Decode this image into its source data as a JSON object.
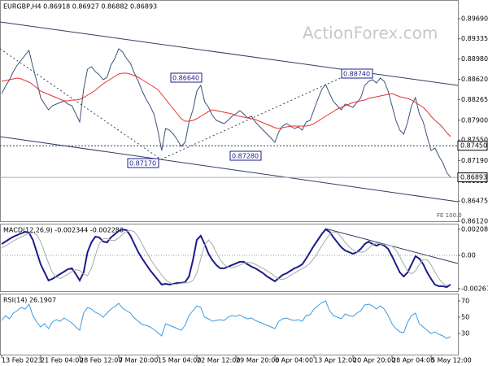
{
  "header": "EURGBP,H4 0.86918 0.86927 0.86882 0.86893",
  "watermark": "ActionForex.com",
  "chart_data": [
    {
      "type": "line",
      "note_label": "FE 100.0",
      "categories": [
        "13 Feb 2023",
        null,
        null,
        null,
        null,
        null,
        null,
        null,
        null,
        null,
        "21 Feb 04:00",
        null,
        null,
        null,
        null,
        null,
        null,
        null,
        null,
        null,
        "28 Feb 12:00",
        null,
        null,
        null,
        null,
        null,
        null,
        null,
        null,
        null,
        "7 Mar 20:00",
        null,
        null,
        null,
        null,
        null,
        null,
        null,
        null,
        null,
        "15 Mar 04:00",
        null,
        null,
        null,
        null,
        null,
        null,
        null,
        null,
        null,
        "22 Mar 12:00",
        null,
        null,
        null,
        null,
        null,
        null,
        null,
        null,
        null,
        "29 Mar 20:00",
        null,
        null,
        null,
        null,
        null,
        null,
        null,
        null,
        null,
        "6 Apr 04:00",
        null,
        null,
        null,
        null,
        null,
        null,
        null,
        null,
        null,
        "13 Apr 12:00",
        null,
        null,
        null,
        null,
        null,
        null,
        null,
        null,
        null,
        "20 Apr 20:00",
        null,
        null,
        null,
        null,
        null,
        null,
        null,
        null,
        null,
        "28 Apr 04:00",
        null,
        null,
        null,
        null,
        null,
        null,
        null,
        null,
        null,
        "5 May 12:00",
        null,
        null,
        null,
        null,
        null
      ],
      "series": [
        {
          "color": "#3d5277",
          "values": [
            0.88371,
            0.885,
            0.88615,
            0.88758,
            0.88873,
            0.88959,
            0.89045,
            0.89131,
            0.88844,
            0.88586,
            0.88299,
            0.88185,
            0.88084,
            0.88156,
            0.88185,
            0.88213,
            0.88242,
            0.88185,
            0.88156,
            0.88013,
            0.87869,
            0.88443,
            0.88801,
            0.88844,
            0.88758,
            0.88701,
            0.88615,
            0.88658,
            0.88873,
            0.88988,
            0.8916,
            0.89102,
            0.88988,
            0.88902,
            0.88729,
            0.88586,
            0.88414,
            0.88271,
            0.88156,
            0.88013,
            0.87726,
            0.87367,
            0.87754,
            0.87726,
            0.87654,
            0.87554,
            0.87439,
            0.87511,
            0.87869,
            0.88084,
            0.88414,
            0.88514,
            0.88228,
            0.88127,
            0.87984,
            0.87898,
            0.87869,
            0.87841,
            0.87898,
            0.8797,
            0.88013,
            0.8807,
            0.88013,
            0.87941,
            0.8797,
            0.87869,
            0.87798,
            0.87726,
            0.87654,
            0.87583,
            0.87511,
            0.87697,
            0.87798,
            0.87841,
            0.87798,
            0.87754,
            0.87783,
            0.87726,
            0.87869,
            0.87898,
            0.88084,
            0.88271,
            0.88443,
            0.88529,
            0.88371,
            0.88228,
            0.88156,
            0.88084,
            0.88185,
            0.88156,
            0.88127,
            0.88213,
            0.88299,
            0.88514,
            0.88586,
            0.88615,
            0.88557,
            0.88643,
            0.88586,
            0.88414,
            0.88156,
            0.87898,
            0.87726,
            0.87654,
            0.87869,
            0.88156,
            0.88299,
            0.88013,
            0.87869,
            0.87611,
            0.87367,
            0.8741,
            0.87267,
            0.87152,
            0.8698,
            0.86893
          ]
        },
        {
          "color": "#e8312f",
          "values": [
            0.88586,
            0.886,
            0.88615,
            0.88629,
            0.88643,
            0.88629,
            0.886,
            0.88572,
            0.88529,
            0.88471,
            0.88414,
            0.88385,
            0.88357,
            0.88328,
            0.88299,
            0.88271,
            0.88242,
            0.88242,
            0.88256,
            0.88256,
            0.88271,
            0.88299,
            0.88342,
            0.88385,
            0.88428,
            0.88486,
            0.88543,
            0.88586,
            0.88629,
            0.88672,
            0.88715,
            0.88729,
            0.88729,
            0.88715,
            0.88686,
            0.88658,
            0.88615,
            0.88572,
            0.88529,
            0.88486,
            0.88443,
            0.88357,
            0.88271,
            0.88185,
            0.88099,
            0.88013,
            0.87927,
            0.87884,
            0.87884,
            0.87898,
            0.87927,
            0.8797,
            0.88013,
            0.88056,
            0.88084,
            0.8807,
            0.88056,
            0.88041,
            0.88027,
            0.88013,
            0.87984,
            0.8797,
            0.87955,
            0.87941,
            0.87927,
            0.87912,
            0.87884,
            0.87855,
            0.87826,
            0.87798,
            0.87769,
            0.87754,
            0.87769,
            0.87783,
            0.87798,
            0.87798,
            0.87798,
            0.87798,
            0.87798,
            0.87812,
            0.87841,
            0.87884,
            0.87927,
            0.8797,
            0.88013,
            0.88056,
            0.88099,
            0.88127,
            0.88156,
            0.88185,
            0.88213,
            0.88228,
            0.88242,
            0.88256,
            0.88285,
            0.88299,
            0.88314,
            0.88328,
            0.88342,
            0.88357,
            0.88371,
            0.88342,
            0.88314,
            0.88299,
            0.88285,
            0.88256,
            0.88213,
            0.8817,
            0.88127,
            0.88056,
            0.8797,
            0.87898,
            0.87841,
            0.87769,
            0.87683,
            0.87611
          ]
        }
      ],
      "levels": [
        {
          "value": 0.8745,
          "label": "0.87450"
        },
        {
          "value": 0.86893,
          "label": "0.86893"
        }
      ],
      "annotations": [
        "0.87170",
        "0.86640",
        "0.87280",
        "0.88740"
      ],
      "ylim": [
        0.8612,
        0.89962
      ],
      "yticks": [
        {
          "value": 0.8969,
          "label": "0.89690"
        },
        0.89335,
        {
          "value": 0.8898,
          "label": "0.88980"
        },
        {
          "value": 0.8862,
          "label": "0.88620"
        },
        0.88265,
        {
          "value": 0.879,
          "label": "0.87900"
        },
        {
          "value": 0.8755,
          "label": "0.87550"
        },
        {
          "value": 0.8719,
          "label": "0.87190"
        },
        {
          "value": 0.8683,
          "label": "0.86830"
        },
        0.86475,
        {
          "value": 0.8612,
          "label": "0.86120"
        }
      ]
    },
    {
      "type": "line",
      "label": "MACD(12,26,9) -0.002344 -0.002286",
      "series": [
        {
          "color": "#1c1c8a",
          "values": [
            0.00091,
            0.00111,
            0.00131,
            0.0015,
            0.00163,
            0.00176,
            0.00189,
            0.00183,
            0.00124,
            0.00026,
            -0.00072,
            -0.00137,
            -0.00202,
            -0.00189,
            -0.0017,
            -0.0015,
            -0.00131,
            -0.00111,
            -0.00104,
            -0.0015,
            -0.00202,
            -0.00137,
            0.00026,
            0.00104,
            0.0015,
            0.00144,
            0.00111,
            0.00104,
            0.00144,
            0.0017,
            0.00196,
            0.00209,
            0.00202,
            0.00157,
            0.00091,
            0.00026,
            -0.00026,
            -0.00072,
            -0.00118,
            -0.00157,
            -0.00196,
            -0.00235,
            -0.00229,
            -0.00235,
            -0.00229,
            -0.00222,
            -0.00222,
            -0.00215,
            -0.0017,
            -0.00039,
            0.00124,
            0.00157,
            0.00091,
            0.00013,
            -0.00039,
            -0.00078,
            -0.00104,
            -0.00104,
            -0.00091,
            -0.00078,
            -0.00065,
            -0.00052,
            -0.00052,
            -0.00072,
            -0.00091,
            -0.00104,
            -0.00124,
            -0.00144,
            -0.0017,
            -0.00189,
            -0.00209,
            -0.00183,
            -0.00157,
            -0.00144,
            -0.00124,
            -0.00104,
            -0.00091,
            -0.00072,
            -0.00026,
            0.00026,
            0.00078,
            0.00124,
            0.0017,
            0.00209,
            0.00189,
            0.00144,
            0.00104,
            0.00065,
            0.00039,
            0.00026,
            0.00013,
            0.00026,
            0.00052,
            0.00091,
            0.00111,
            0.00091,
            0.00078,
            0.00091,
            0.00078,
            0.00052,
            -7e-05,
            -0.00072,
            -0.00137,
            -0.0017,
            -0.00137,
            -0.00072,
            -7e-05,
            -0.00026,
            -0.00072,
            -0.00137,
            -0.00189,
            -0.00235,
            -0.00248,
            -0.00248,
            -0.00255,
            -0.002344
          ]
        },
        {
          "color": "#a9a9a9",
          "values": [
            0.0006,
            0.00075,
            0.00095,
            0.00115,
            0.00132,
            0.00148,
            0.00163,
            0.00176,
            0.00183,
            0.00165,
            0.00111,
            0.00026,
            -0.00061,
            -0.00137,
            -0.00176,
            -0.00187,
            -0.0017,
            -0.0015,
            -0.00131,
            -0.00115,
            -0.00122,
            -0.00152,
            -0.00163,
            -0.00104,
            -2e-05,
            0.00093,
            0.00133,
            0.00135,
            0.0012,
            0.0012,
            0.00139,
            0.0017,
            0.00192,
            0.00202,
            0.00189,
            0.0015,
            0.00091,
            0.0003,
            -0.00024,
            -0.00072,
            -0.00116,
            -0.00157,
            -0.00196,
            -0.0022,
            -0.00233,
            -0.00231,
            -0.00225,
            -0.00221,
            -0.0022,
            -0.00202,
            -0.00141,
            -0.00028,
            0.00081,
            0.00124,
            0.00087,
            0.00022,
            -0.00035,
            -0.00074,
            -0.00095,
            -0.001,
            -0.00091,
            -0.00078,
            -0.00065,
            -0.00056,
            -0.0006,
            -0.00072,
            -0.00089,
            -0.00106,
            -0.00124,
            -0.00146,
            -0.00168,
            -0.00189,
            -0.00194,
            -0.00183,
            -0.00161,
            -0.00142,
            -0.00124,
            -0.00106,
            -0.00089,
            -0.00063,
            -0.00024,
            0.00026,
            0.00076,
            0.00124,
            0.00168,
            0.00189,
            0.00181,
            0.00146,
            0.00104,
            0.00069,
            0.00043,
            0.00026,
            0.00026,
            0.0003,
            0.00056,
            0.00085,
            0.00098,
            0.00093,
            0.00087,
            0.00082,
            0.00074,
            0.00041,
            -9e-05,
            -0.00072,
            -0.00126,
            -0.00148,
            -0.00126,
            -0.00072,
            -0.00035,
            -0.00035,
            -0.00078,
            -0.00133,
            -0.00187,
            -0.00224,
            -0.00244,
            -0.002286
          ]
        }
      ],
      "ylim": [
        -0.00288,
        0.00248
      ],
      "yticks": [
        0.002088,
        {
          "value": 0,
          "label": "0.00"
        },
        -0.002679
      ]
    },
    {
      "type": "line",
      "label": "RSI(14) 26.1907",
      "series": [
        {
          "color": "#3a9be0",
          "values": [
            46,
            52,
            48,
            55,
            58,
            62,
            60,
            66,
            52,
            44,
            38,
            42,
            36,
            44,
            47,
            45,
            49,
            46,
            43,
            38,
            34,
            55,
            62,
            60,
            56,
            54,
            50,
            55,
            60,
            63,
            67,
            61,
            58,
            55,
            49,
            45,
            41,
            40,
            38,
            35,
            31,
            27,
            42,
            40,
            38,
            36,
            34,
            40,
            52,
            58,
            64,
            62,
            50,
            48,
            45,
            46,
            47,
            46,
            50,
            52,
            51,
            53,
            50,
            48,
            49,
            46,
            44,
            42,
            40,
            38,
            36,
            45,
            48,
            49,
            47,
            46,
            47,
            45,
            52,
            53,
            60,
            64,
            68,
            70,
            58,
            52,
            50,
            48,
            54,
            52,
            51,
            55,
            58,
            65,
            66,
            64,
            60,
            64,
            60,
            52,
            42,
            36,
            32,
            31,
            44,
            52,
            55,
            42,
            38,
            34,
            30,
            32,
            29,
            27,
            24,
            26.1907
          ]
        }
      ],
      "ylim": [
        4,
        78
      ],
      "yticks": [
        70,
        50,
        30
      ]
    }
  ]
}
